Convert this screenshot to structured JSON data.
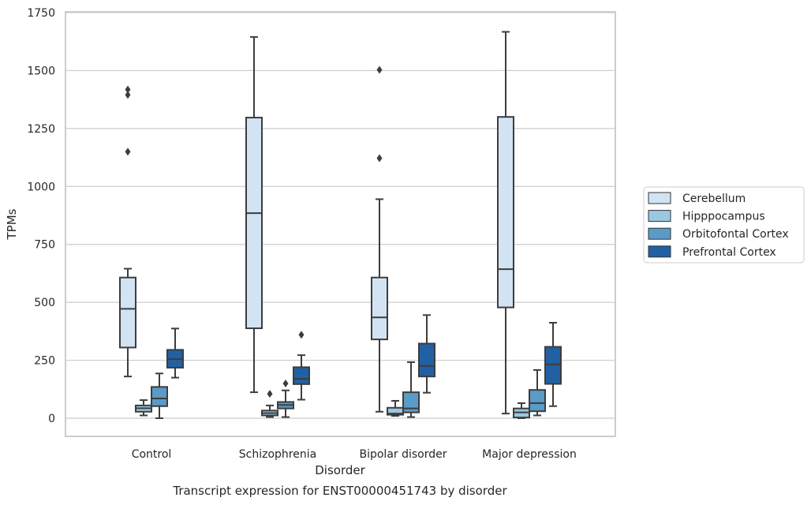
{
  "chart_data": {
    "type": "box",
    "title": "Transcript expression for ENST00000451743 by disorder",
    "xlabel": "Disorder",
    "ylabel": "TPMs",
    "ylim": [
      -75,
      1750
    ],
    "yticks": [
      0,
      250,
      500,
      750,
      1000,
      1250,
      1500,
      1750
    ],
    "grid": true,
    "legend_position": "right",
    "categories": [
      "Control",
      "Schizophrenia",
      "Bipolar disorder",
      "Major depression"
    ],
    "series": [
      {
        "name": "Cerebellum",
        "color": "#d2e3f3",
        "boxes": [
          {
            "whislo": 180,
            "q1": 305,
            "med": 472,
            "q3": 607,
            "whishi": 645,
            "fliers": [
              1150,
              1395,
              1418
            ]
          },
          {
            "whislo": 112,
            "q1": 388,
            "med": 885,
            "q3": 1297,
            "whishi": 1645,
            "fliers": []
          },
          {
            "whislo": 28,
            "q1": 340,
            "med": 435,
            "q3": 607,
            "whishi": 945,
            "fliers": [
              1122,
              1503
            ]
          },
          {
            "whislo": 20,
            "q1": 478,
            "med": 643,
            "q3": 1300,
            "whishi": 1667,
            "fliers": []
          }
        ]
      },
      {
        "name": "Hipppocampus",
        "color": "#9ac8e0",
        "boxes": [
          {
            "whislo": 12,
            "q1": 28,
            "med": 43,
            "q3": 55,
            "whishi": 78,
            "fliers": []
          },
          {
            "whislo": 5,
            "q1": 12,
            "med": 22,
            "q3": 33,
            "whishi": 55,
            "fliers": [
              105
            ]
          },
          {
            "whislo": 10,
            "q1": 15,
            "med": 20,
            "q3": 45,
            "whishi": 75,
            "fliers": []
          },
          {
            "whislo": 0,
            "q1": 3,
            "med": 25,
            "q3": 42,
            "whishi": 65,
            "fliers": []
          }
        ]
      },
      {
        "name": "Orbitofontal Cortex",
        "color": "#5a9bc8",
        "boxes": [
          {
            "whislo": 0,
            "q1": 52,
            "med": 85,
            "q3": 135,
            "whishi": 193,
            "fliers": []
          },
          {
            "whislo": 5,
            "q1": 42,
            "med": 57,
            "q3": 70,
            "whishi": 120,
            "fliers": [
              150
            ]
          },
          {
            "whislo": 5,
            "q1": 25,
            "med": 42,
            "q3": 112,
            "whishi": 242,
            "fliers": []
          },
          {
            "whislo": 12,
            "q1": 30,
            "med": 65,
            "q3": 122,
            "whishi": 208,
            "fliers": []
          }
        ]
      },
      {
        "name": "Prefrontal Cortex",
        "color": "#2161a3",
        "boxes": [
          {
            "whislo": 175,
            "q1": 218,
            "med": 255,
            "q3": 295,
            "whishi": 387,
            "fliers": []
          },
          {
            "whislo": 80,
            "q1": 147,
            "med": 170,
            "q3": 220,
            "whishi": 272,
            "fliers": [
              360
            ]
          },
          {
            "whislo": 110,
            "q1": 180,
            "med": 225,
            "q3": 322,
            "whishi": 445,
            "fliers": []
          },
          {
            "whislo": 52,
            "q1": 148,
            "med": 232,
            "q3": 308,
            "whishi": 412,
            "fliers": []
          }
        ]
      }
    ]
  }
}
